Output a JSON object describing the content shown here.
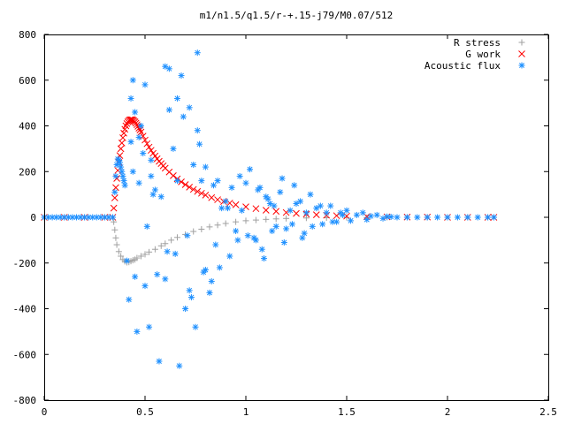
{
  "chart_data": {
    "type": "scatter",
    "title": "m1/n1.5/q1.5/r-+.15-j79/M0.07/512",
    "xlabel": "",
    "ylabel": "",
    "xlim": [
      0,
      2.5
    ],
    "ylim": [
      -800,
      800
    ],
    "xticks": [
      {
        "value": 0,
        "label": "0"
      },
      {
        "value": 0.5,
        "label": "0.5"
      },
      {
        "value": 1,
        "label": "1"
      },
      {
        "value": 1.5,
        "label": "1.5"
      },
      {
        "value": 2,
        "label": "2"
      },
      {
        "value": 2.5,
        "label": "2.5"
      }
    ],
    "yticks": [
      {
        "value": -800,
        "label": "-800"
      },
      {
        "value": -600,
        "label": "-600"
      },
      {
        "value": -400,
        "label": "-400"
      },
      {
        "value": -200,
        "label": "-200"
      },
      {
        "value": 0,
        "label": "0"
      },
      {
        "value": 200,
        "label": "200"
      },
      {
        "value": 400,
        "label": "400"
      },
      {
        "value": 600,
        "label": "600"
      },
      {
        "value": 800,
        "label": "800"
      }
    ],
    "grid": false,
    "legend_position": "top-right",
    "series": [
      {
        "name": "R stress",
        "marker": "plus",
        "color": "#a0a0a0",
        "x": [
          0,
          0.1,
          0.2,
          0.3,
          0.34,
          0.345,
          0.35,
          0.355,
          0.36,
          0.37,
          0.38,
          0.39,
          0.4,
          0.41,
          0.42,
          0.43,
          0.44,
          0.45,
          0.46,
          0.48,
          0.5,
          0.52,
          0.55,
          0.58,
          0.6,
          0.63,
          0.66,
          0.7,
          0.74,
          0.78,
          0.82,
          0.86,
          0.9,
          0.95,
          1.0,
          1.05,
          1.1,
          1.15,
          1.2,
          1.3,
          1.4,
          1.5,
          1.6,
          1.7,
          1.8,
          1.9,
          2.0,
          2.1,
          2.2,
          2.23
        ],
        "y": [
          0,
          0,
          0,
          0,
          0,
          -20,
          -55,
          -90,
          -120,
          -150,
          -170,
          -185,
          -193,
          -197,
          -196,
          -192,
          -188,
          -185,
          -178,
          -170,
          -162,
          -152,
          -140,
          -125,
          -115,
          -100,
          -88,
          -75,
          -62,
          -52,
          -42,
          -34,
          -27,
          -20,
          -15,
          -12,
          -9,
          -7,
          -5,
          -3,
          -2,
          -1,
          -1,
          0,
          0,
          0,
          0,
          0,
          0,
          0
        ]
      },
      {
        "name": "G work",
        "marker": "cross",
        "color": "#ff0000",
        "x": [
          0,
          0.1,
          0.2,
          0.3,
          0.34,
          0.345,
          0.35,
          0.355,
          0.36,
          0.365,
          0.37,
          0.375,
          0.38,
          0.385,
          0.39,
          0.395,
          0.4,
          0.405,
          0.41,
          0.415,
          0.42,
          0.425,
          0.43,
          0.435,
          0.44,
          0.445,
          0.45,
          0.455,
          0.46,
          0.465,
          0.47,
          0.475,
          0.48,
          0.49,
          0.5,
          0.51,
          0.52,
          0.53,
          0.54,
          0.55,
          0.56,
          0.57,
          0.58,
          0.59,
          0.6,
          0.62,
          0.64,
          0.66,
          0.68,
          0.7,
          0.72,
          0.74,
          0.76,
          0.78,
          0.8,
          0.83,
          0.86,
          0.89,
          0.92,
          0.95,
          1.0,
          1.05,
          1.1,
          1.15,
          1.2,
          1.25,
          1.3,
          1.35,
          1.4,
          1.45,
          1.5,
          1.6,
          1.7,
          1.8,
          1.9,
          2.0,
          2.1,
          2.2,
          2.23
        ],
        "y": [
          0,
          0,
          0,
          0,
          0,
          40,
          85,
          130,
          170,
          205,
          240,
          270,
          300,
          325,
          348,
          368,
          385,
          400,
          410,
          418,
          423,
          426,
          427,
          427,
          425,
          422,
          418,
          412,
          405,
          398,
          390,
          382,
          373,
          355,
          338,
          322,
          307,
          293,
          280,
          268,
          256,
          245,
          235,
          225,
          215,
          198,
          182,
          168,
          155,
          143,
          132,
          122,
          113,
          105,
          97,
          86,
          77,
          69,
          62,
          55,
          46,
          38,
          31,
          26,
          21,
          17,
          14,
          11,
          9,
          7,
          5,
          3,
          2,
          1,
          1,
          0,
          0,
          0,
          0
        ]
      },
      {
        "name": "Acoustic flux",
        "marker": "star",
        "color": "#1e90ff",
        "x": [
          0,
          0.02,
          0.04,
          0.06,
          0.08,
          0.1,
          0.12,
          0.14,
          0.16,
          0.18,
          0.2,
          0.22,
          0.24,
          0.26,
          0.28,
          0.3,
          0.32,
          0.34,
          0.35,
          0.355,
          0.36,
          0.365,
          0.37,
          0.375,
          0.38,
          0.385,
          0.39,
          0.395,
          0.4,
          0.41,
          0.42,
          0.43,
          0.44,
          0.45,
          0.46,
          0.47,
          0.48,
          0.5,
          0.52,
          0.53,
          0.55,
          0.57,
          0.6,
          0.61,
          0.62,
          0.64,
          0.66,
          0.67,
          0.68,
          0.7,
          0.72,
          0.73,
          0.74,
          0.75,
          0.76,
          0.78,
          0.8,
          0.82,
          0.84,
          0.86,
          0.88,
          0.9,
          0.92,
          0.95,
          0.98,
          1.0,
          1.02,
          1.05,
          1.08,
          1.1,
          1.12,
          1.15,
          1.18,
          1.2,
          1.22,
          1.25,
          1.28,
          1.3,
          1.32,
          1.35,
          1.38,
          1.4,
          1.42,
          1.45,
          1.48,
          1.5,
          1.52,
          1.55,
          1.58,
          1.6,
          1.62,
          1.65,
          1.68,
          1.7,
          1.72,
          1.75,
          1.8,
          1.85,
          1.9,
          1.95,
          2.0,
          2.05,
          2.1,
          2.15,
          2.2,
          2.23,
          0.43,
          0.45,
          0.47,
          0.49,
          0.51,
          0.53,
          0.56,
          0.58,
          0.62,
          0.65,
          0.69,
          0.71,
          0.77,
          0.79,
          0.83,
          0.87,
          0.91,
          0.96,
          1.04,
          1.07,
          1.11,
          1.13,
          1.17,
          1.23,
          1.27,
          1.33,
          1.37,
          1.43,
          1.47,
          0.44,
          0.5,
          0.54,
          0.6,
          0.66,
          0.72,
          0.76,
          0.8,
          0.85,
          0.93,
          0.97,
          1.01,
          1.06,
          1.09,
          1.14,
          1.19,
          1.24,
          1.29
        ],
        "y": [
          0,
          0,
          0,
          0,
          0,
          0,
          0,
          0,
          0,
          0,
          0,
          0,
          0,
          0,
          0,
          0,
          0,
          0,
          110,
          180,
          230,
          255,
          250,
          240,
          220,
          200,
          180,
          160,
          140,
          -190,
          -360,
          520,
          600,
          -260,
          -500,
          150,
          400,
          580,
          -480,
          250,
          120,
          -630,
          660,
          -150,
          650,
          300,
          520,
          -650,
          620,
          -400,
          480,
          -350,
          230,
          -480,
          720,
          160,
          220,
          -330,
          140,
          160,
          40,
          70,
          -170,
          -60,
          30,
          150,
          210,
          -100,
          -140,
          90,
          60,
          -40,
          170,
          -50,
          30,
          60,
          -90,
          20,
          100,
          40,
          -30,
          20,
          50,
          -20,
          10,
          30,
          -15,
          10,
          20,
          -10,
          5,
          10,
          -5,
          3,
          2,
          0,
          0,
          0,
          0,
          0,
          0,
          0,
          0,
          0,
          0,
          0,
          330,
          460,
          350,
          280,
          -40,
          180,
          -250,
          90,
          470,
          -160,
          440,
          -80,
          320,
          -240,
          -280,
          -220,
          40,
          -100,
          -90,
          130,
          80,
          -60,
          110,
          -30,
          70,
          -40,
          50,
          -20,
          20,
          200,
          -300,
          100,
          -270,
          160,
          -320,
          380,
          -230,
          -120,
          130,
          180,
          -80,
          120,
          -180,
          50,
          -110,
          140,
          -70
        ]
      }
    ]
  }
}
